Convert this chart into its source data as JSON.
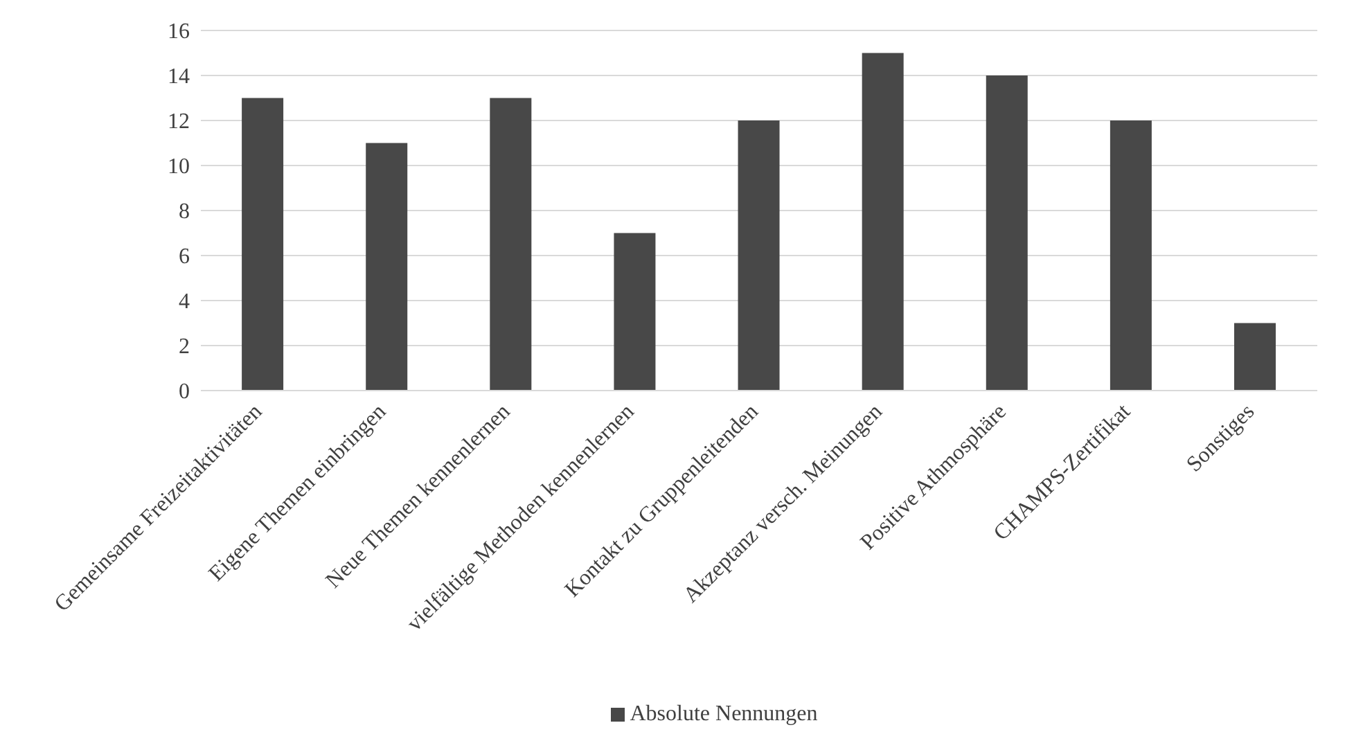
{
  "chart_data": {
    "type": "bar",
    "categories": [
      "Gemeinsame Freizeitaktivitäten",
      "Eigene Themen einbringen",
      "Neue Themen kennenlernen",
      "vielfältige Methoden kennenlernen",
      "Kontakt zu Gruppenleitenden",
      "Akzeptanz versch. Meinungen",
      "Positive Athmosphäre",
      "CHAMPS-Zertifikat",
      "Sonstiges"
    ],
    "series": [
      {
        "name": "Absolute Nennungen",
        "color": "#484848",
        "values": [
          13,
          11,
          13,
          7,
          12,
          15,
          14,
          12,
          3
        ]
      }
    ],
    "ylim": [
      0,
      16
    ],
    "yticks": [
      0,
      2,
      4,
      6,
      8,
      10,
      12,
      14,
      16
    ],
    "grid": "y",
    "legend": "bottom"
  }
}
